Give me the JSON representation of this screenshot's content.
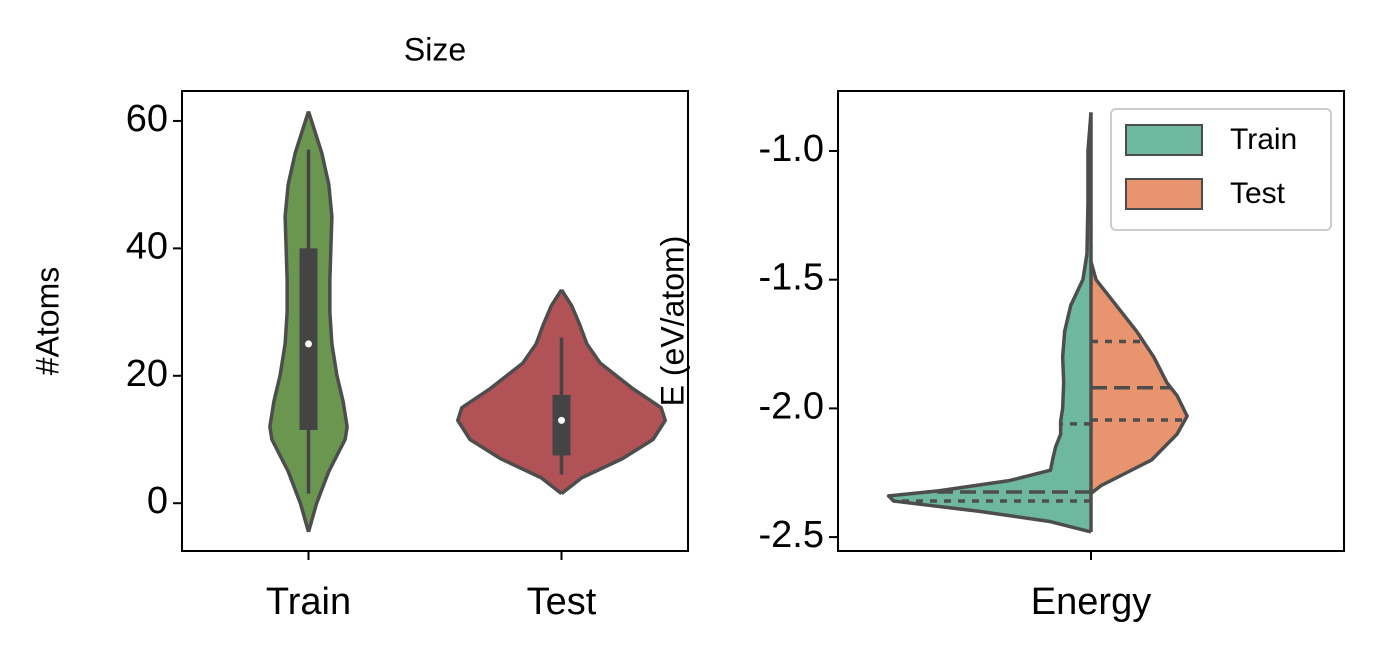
{
  "chart_data": [
    {
      "type": "violin",
      "title": "Size",
      "y_label": "#Atoms",
      "categories": [
        "Train",
        "Test"
      ],
      "violins": [
        {
          "color": "#6b9650",
          "y": [
            -4.5,
            0,
            5,
            10,
            12,
            16,
            20,
            25,
            30,
            35,
            40,
            45,
            50,
            55,
            58,
            61.5
          ],
          "density": [
            0,
            8,
            20,
            36,
            38,
            34,
            28,
            23,
            21,
            21,
            22,
            23,
            20,
            13,
            7,
            0
          ],
          "q1": 11.5,
          "median": 25,
          "q3": 40,
          "whisker_low": 1.5,
          "whisker_high": 55.5
        },
        {
          "color": "#b05256",
          "y": [
            1.5,
            4,
            7,
            10,
            13,
            15,
            18,
            22,
            25,
            28,
            31,
            33.5
          ],
          "density": [
            0,
            20,
            60,
            90,
            102,
            98,
            70,
            38,
            25,
            18,
            10,
            0
          ],
          "q1": 7.5,
          "median": 13,
          "q3": 17,
          "whisker_low": 4.5,
          "whisker_high": 26
        }
      ],
      "ylim": [
        -7.5,
        64.7
      ],
      "yticks": [
        0,
        20,
        40,
        60
      ]
    },
    {
      "type": "split_violin",
      "y_label": "E (eV/atom)",
      "categories": [
        "Energy"
      ],
      "series": [
        {
          "name": "Train",
          "color": "#6fb8a0",
          "y": [
            -2.48,
            -2.44,
            -2.4,
            -2.36,
            -2.34,
            -2.32,
            -2.28,
            -2.24,
            -2.2,
            -2.15,
            -2.1,
            -2.05,
            -2.0,
            -1.9,
            -1.8,
            -1.7,
            -1.6,
            -1.5,
            -1.4,
            -1.2,
            -1.0,
            -0.85
          ],
          "density": [
            0,
            40,
            110,
            195,
            200,
            150,
            80,
            40,
            38,
            35,
            30,
            30,
            28,
            27,
            28,
            26,
            20,
            8,
            4,
            3,
            3,
            0
          ],
          "q1": -2.36,
          "median": -2.325,
          "q3": -2.06
        },
        {
          "name": "Test",
          "color": "#e8956f",
          "y": [
            -2.33,
            -2.3,
            -2.25,
            -2.2,
            -2.1,
            -2.03,
            -1.95,
            -1.9,
            -1.8,
            -1.7,
            -1.6,
            -1.5,
            -1.43
          ],
          "density": [
            0,
            10,
            35,
            60,
            85,
            95,
            85,
            75,
            62,
            45,
            25,
            5,
            0
          ],
          "q1": -2.045,
          "median": -1.92,
          "q3": -1.74
        }
      ],
      "legend": "upper right",
      "ylim": [
        -2.554,
        -0.767
      ],
      "yticks": [
        {
          "value": -2.5,
          "label": "-2.5"
        },
        {
          "value": -2.0,
          "label": "-2.0"
        },
        {
          "value": -1.5,
          "label": "-1.5"
        },
        {
          "value": -1.0,
          "label": "-1.0"
        }
      ]
    }
  ]
}
